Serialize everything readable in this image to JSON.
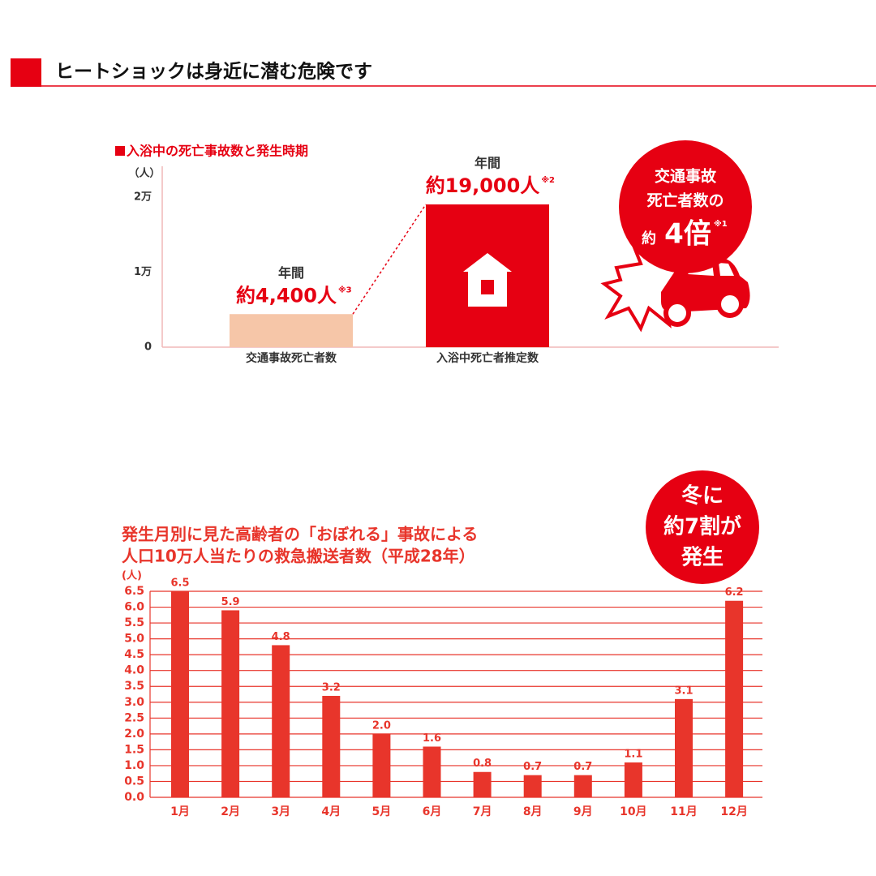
{
  "header": {
    "title": "ヒートショックは身近に潜む危険です"
  },
  "chart_data": [
    {
      "type": "bar",
      "title": "入浴中の死亡事故数と発生時期",
      "ylabel": "（人）",
      "categories": [
        "交通事故死亡者数",
        "入浴中死亡者推定数"
      ],
      "values": [
        4400,
        19000
      ],
      "value_labels": [
        "約4,400人",
        "約19,000人"
      ],
      "value_notes": [
        "※3",
        "※2"
      ],
      "value_prefix": "年間",
      "colors": [
        "#f6c6a8",
        "#e60012"
      ],
      "ylim": [
        0,
        23000
      ],
      "yticks": [
        0,
        {
          "value": 10000,
          "label": "1万"
        },
        {
          "value": 20000,
          "label": "2万"
        }
      ],
      "grid": false,
      "callout": {
        "lines": [
          "交通事故",
          "死亡者数の"
        ],
        "prefix": "約",
        "emphasis": "4倍",
        "note": "※1"
      }
    },
    {
      "type": "bar",
      "title": [
        "発生月別に見た高齢者の「おぼれる」事故による",
        "人口10万人当たりの救急搬送者数（平成28年）"
      ],
      "ylabel": "(人)",
      "categories": [
        "1月",
        "2月",
        "3月",
        "4月",
        "5月",
        "6月",
        "7月",
        "8月",
        "9月",
        "10月",
        "11月",
        "12月"
      ],
      "values": [
        6.5,
        5.9,
        4.8,
        3.2,
        2.0,
        1.6,
        0.8,
        0.7,
        0.7,
        1.1,
        3.1,
        6.2
      ],
      "value_labels": [
        "6.5",
        "5.9",
        "4.8",
        "3.2",
        "2.0",
        "1.6",
        "0.8",
        "0.7",
        "0.7",
        "1.1",
        "3.1",
        "6.2"
      ],
      "color": "#e8352b",
      "ylim": [
        0,
        6.5
      ],
      "yticks": [
        {
          "value": 0,
          "label": "0.0"
        },
        0.5,
        {
          "value": 1,
          "label": "1.0"
        },
        1.5,
        {
          "value": 2,
          "label": "2.0"
        },
        2.5,
        {
          "value": 3,
          "label": "3.0"
        },
        3.5,
        {
          "value": 4,
          "label": "4.0"
        },
        4.5,
        {
          "value": 5,
          "label": "5.0"
        },
        5.5,
        {
          "value": 6,
          "label": "6.0"
        },
        6.5
      ],
      "grid": true,
      "callout": {
        "lines": [
          "冬に",
          "約7割が",
          "発生"
        ]
      }
    }
  ]
}
